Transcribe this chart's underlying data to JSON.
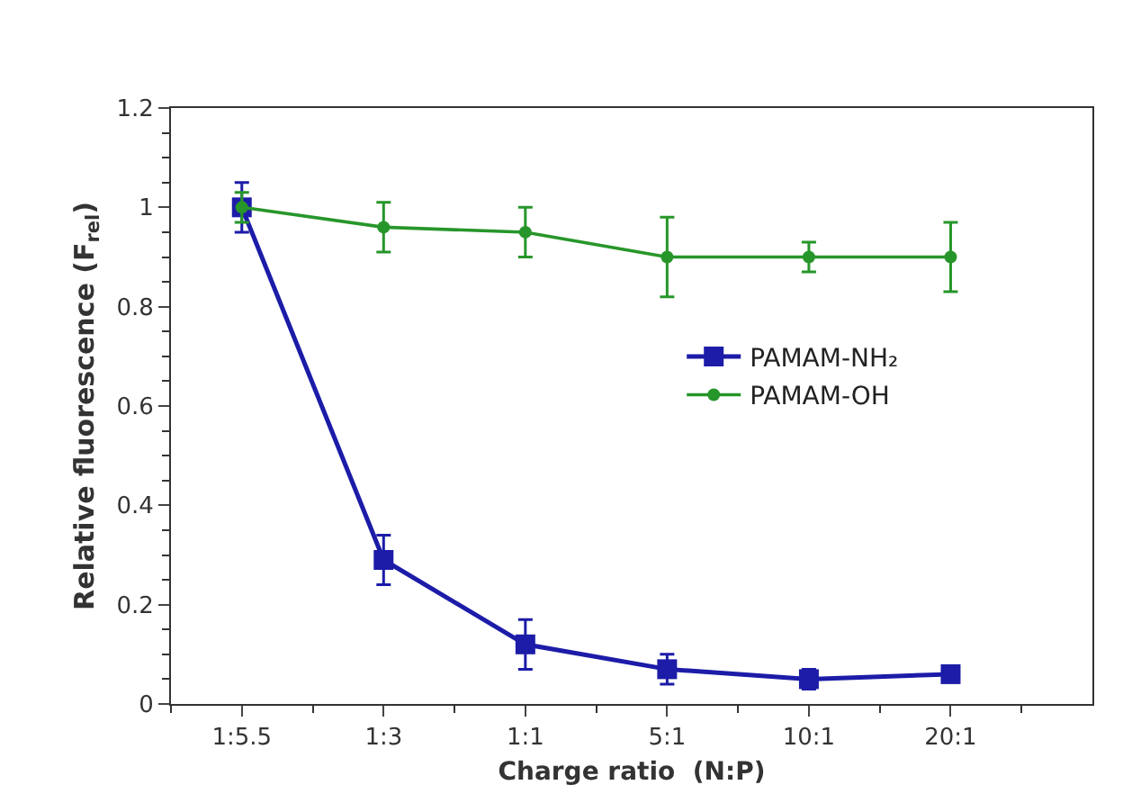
{
  "chart_data": {
    "type": "line",
    "xlabel": "Charge ratio  (N:P)",
    "ylabel": "Relative fluorescence (F$_{rel}$)",
    "categories": [
      "1:5.5",
      "1:3",
      "1:1",
      "5:1",
      "10:1",
      "20:1"
    ],
    "series": [
      {
        "name": "PAMAM-NH₂",
        "color": "#1c1ca8",
        "marker": "square",
        "values": [
          1.0,
          0.29,
          0.12,
          0.07,
          0.05,
          0.06
        ],
        "errors": [
          0.05,
          0.05,
          0.05,
          0.03,
          0.02,
          null
        ]
      },
      {
        "name": "PAMAM-OH",
        "color": "#27962a",
        "marker": "circle",
        "values": [
          1.0,
          0.96,
          0.95,
          0.9,
          0.9,
          0.9
        ],
        "errors": [
          0.03,
          0.05,
          0.05,
          0.08,
          0.03,
          0.07
        ]
      }
    ],
    "ylim": [
      0,
      1.2
    ],
    "yticks": [
      0,
      0.2,
      0.4,
      0.6,
      0.8,
      1,
      1.2
    ],
    "legend": "right",
    "line_style": "solid"
  }
}
